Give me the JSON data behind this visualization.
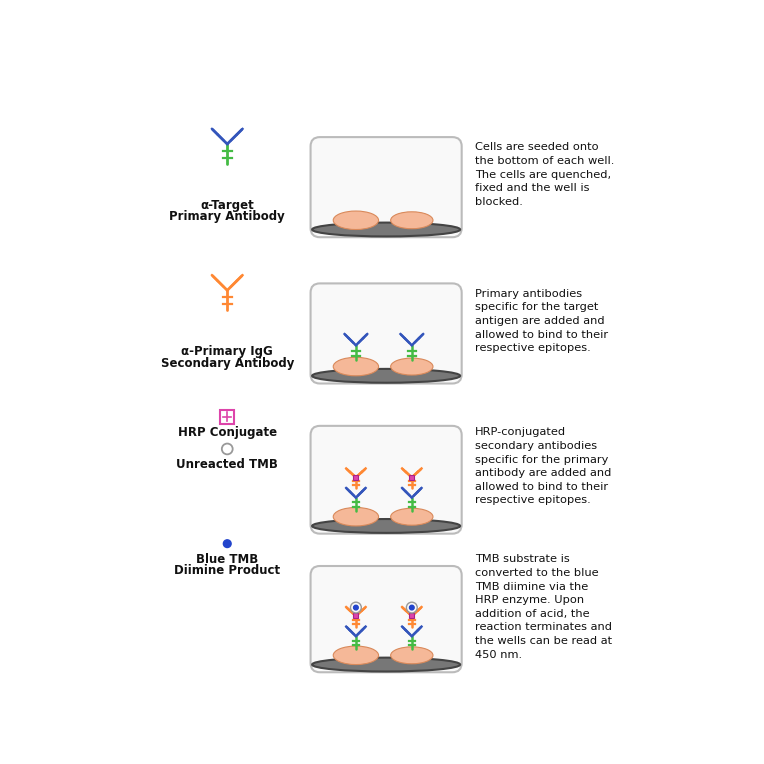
{
  "background_color": "#ffffff",
  "fig_width": 7.64,
  "fig_height": 7.64,
  "dpi": 100,
  "rows": [
    {
      "icon_label1": "α-Target",
      "icon_label2": "Primary Antibody",
      "description": "Cells are seeded onto\nthe bottom of each well.\nThe cells are quenched,\nfixed and the well is\nblocked.",
      "well_content": "cells_only",
      "icon_type": "antibody_green_blue"
    },
    {
      "icon_label1": "α-Primary IgG",
      "icon_label2": "Secondary Antibody",
      "description": "Primary antibodies\nspecific for the target\nantigen are added and\nallowed to bind to their\nrespective epitopes.",
      "well_content": "cells_with_primary",
      "icon_type": "antibody_orange"
    },
    {
      "icon_label1": "HRP Conjugate",
      "icon_label2": "",
      "icon_label3": "Unreacted TMB",
      "description": "HRP-conjugated\nsecondary antibodies\nspecific for the primary\nantibody are added and\nallowed to bind to their\nrespective epitopes.",
      "well_content": "cells_with_hrp",
      "icon_type": "hrp_tmb"
    },
    {
      "icon_label1": "Blue TMB",
      "icon_label2": "Diimine Product",
      "description": "TMB substrate is\nconverted to the blue\nTMB diimine via the\nHRP enzyme. Upon\naddition of acid, the\nreaction terminates and\nthe wells can be read at\n450 nm.",
      "well_content": "cells_with_blue_tmb",
      "icon_type": "blue_tmb"
    }
  ],
  "green_color": "#44bb44",
  "blue_color": "#3355bb",
  "orange_color": "#ff8833",
  "pink_color": "#dd44aa",
  "cell_fill": "#f5b898",
  "cell_edge": "#d9895a",
  "well_fill": "#f9f9f9",
  "well_edge": "#bbbbbb",
  "well_bottom_fill": "#888888",
  "text_color": "#111111"
}
